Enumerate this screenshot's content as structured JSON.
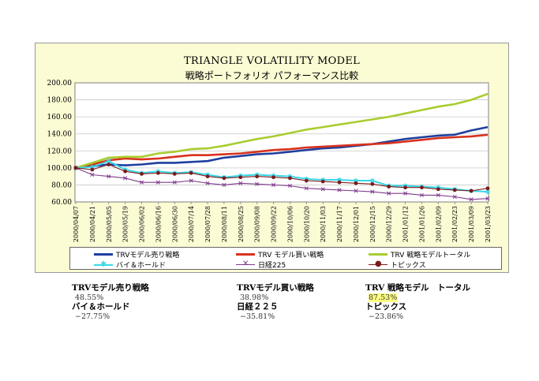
{
  "chart_data": {
    "type": "line",
    "title": "TRIANGLE VOLATILITY MODEL",
    "subtitle": "戦略ポートフォリオ パフォーマンス比較",
    "ylim": [
      60,
      200
    ],
    "yticks": [
      "200.00",
      "180.00",
      "160.00",
      "140.00",
      "120.00",
      "100.00",
      "80.00",
      "60.00"
    ],
    "categories": [
      "2000/04/07",
      "2000/04/21",
      "2000/05/05",
      "2000/05/19",
      "2000/06/02",
      "2000/06/16",
      "2000/06/30",
      "2000/07/14",
      "2000/07/28",
      "2000/08/11",
      "2000/08/25",
      "2000/09/08",
      "2000/09/22",
      "2000/10/06",
      "2000/10/20",
      "2000/11/03",
      "2000/11/17",
      "2000/12/01",
      "2000/12/15",
      "2000/12/29",
      "2001/01/12",
      "2001/01/26",
      "2001/02/09",
      "2001/02/23",
      "2001/03/09",
      "2001/03/23"
    ],
    "grid": true,
    "legend_position": "bottom",
    "series": [
      {
        "name": "TRVモデル売り戦略",
        "color": "#1f3f9f",
        "marker": "none",
        "values": [
          100,
          102,
          104,
          103,
          104,
          106,
          106,
          107,
          108,
          112,
          114,
          116,
          117,
          119,
          121,
          123,
          124,
          126,
          128,
          131,
          134,
          136,
          138,
          139,
          144,
          148
        ]
      },
      {
        "name": "TRV モデル買い戦略",
        "color": "#d8321e",
        "marker": "none",
        "values": [
          100,
          104,
          109,
          111,
          110,
          111,
          113,
          115,
          115,
          116,
          117,
          119,
          121,
          122,
          124,
          125,
          126,
          127,
          128,
          129,
          131,
          133,
          135,
          136,
          137,
          139
        ]
      },
      {
        "name": "TRV 戦略モデルトータル",
        "color": "#a8cd30",
        "marker": "none",
        "values": [
          100,
          106,
          112,
          113,
          113,
          117,
          119,
          122,
          123,
          126,
          130,
          134,
          137,
          141,
          145,
          148,
          151,
          154,
          157,
          160,
          164,
          168,
          172,
          175,
          180,
          187
        ]
      },
      {
        "name": "バイ＆ホールド",
        "color": "#3ad7e7",
        "marker": "star",
        "values": [
          100,
          101,
          108,
          98,
          94,
          96,
          94,
          95,
          92,
          89,
          91,
          92,
          91,
          90,
          87,
          86,
          86,
          85,
          85,
          79,
          79,
          78,
          77,
          75,
          73,
          72
        ]
      },
      {
        "name": "日経225",
        "color": "#7e3a8a",
        "marker": "x",
        "values": [
          100,
          92,
          90,
          88,
          83,
          83,
          83,
          85,
          82,
          80,
          82,
          81,
          80,
          79,
          76,
          75,
          74,
          73,
          72,
          70,
          70,
          68,
          68,
          66,
          63,
          64
        ]
      },
      {
        "name": "トピックス",
        "color": "#7a1a1a",
        "marker": "dot",
        "values": [
          100,
          98,
          104,
          96,
          93,
          94,
          93,
          94,
          90,
          88,
          89,
          90,
          89,
          88,
          85,
          84,
          83,
          82,
          81,
          78,
          77,
          77,
          75,
          74,
          73,
          76
        ]
      }
    ]
  },
  "stats": [
    {
      "label": "TRVモデル売り戦略",
      "value": "48.55%"
    },
    {
      "label": "TRVモデル買い戦略",
      "value": "38.98%"
    },
    {
      "label": "TRV 戦略モデル　トータル",
      "value": "87.53%"
    },
    {
      "label": "バイ＆ホールド",
      "value": "−27.75%"
    },
    {
      "label": "日経２２５",
      "value": "−35.81%"
    },
    {
      "label": "トピックス",
      "value": "−23.86%"
    }
  ]
}
